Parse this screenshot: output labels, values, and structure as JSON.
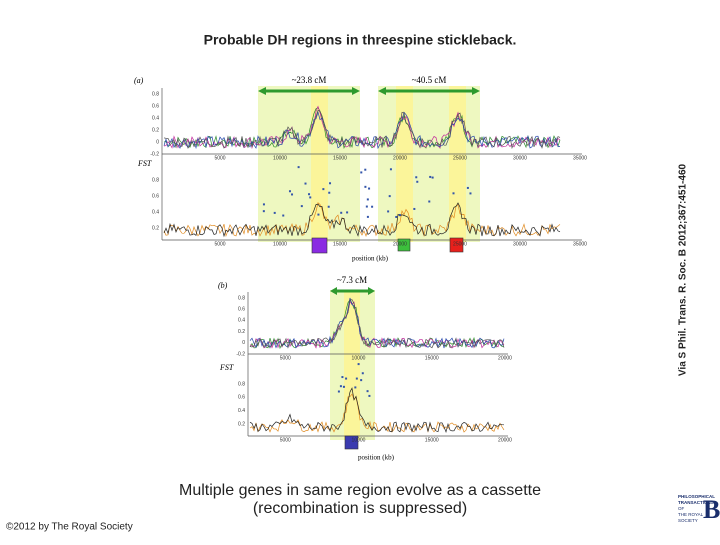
{
  "title": "Probable DH regions in threespine stickleback.",
  "caption": [
    "Multiple genes in same region evolve as a cassette",
    "(recombination is suppressed)"
  ],
  "copyright": "©2012 by The Royal Society",
  "source": "Via S Phil. Trans. R. Soc. B 2012;367:451-460",
  "logo": {
    "lines": [
      "PHILOSOPHICAL",
      "TRANSACTIONS",
      "OF",
      "THE ROYAL",
      "SOCIETY"
    ],
    "letter": "B"
  },
  "figure": {
    "panel_a": {
      "label": "(a)",
      "regions": [
        "~23.8 cM",
        "~40.5 cM"
      ],
      "y_label": "FST",
      "upper_yticks": [
        "0.8",
        "0.6",
        "0.4",
        "0.2",
        "0",
        "-0.2"
      ],
      "lower_yticks": [
        "0.8",
        "0.6",
        "0.4",
        "0.2"
      ],
      "xticks": [
        "5000",
        "10000",
        "15000",
        "20000",
        "25000",
        "30000",
        "35000"
      ],
      "x_label": "position (kb)"
    },
    "panel_b": {
      "label": "(b)",
      "regions": [
        "~7.3 cM"
      ],
      "y_label": "FST",
      "upper_yticks": [
        "0.8",
        "0.6",
        "0.4",
        "0.2",
        "0",
        "-0.2"
      ],
      "lower_yticks": [
        "0.8",
        "0.6",
        "0.4",
        "0.2"
      ],
      "xticks": [
        "5000",
        "10000",
        "15000",
        "20000"
      ],
      "x_label": "position (kb)"
    }
  }
}
